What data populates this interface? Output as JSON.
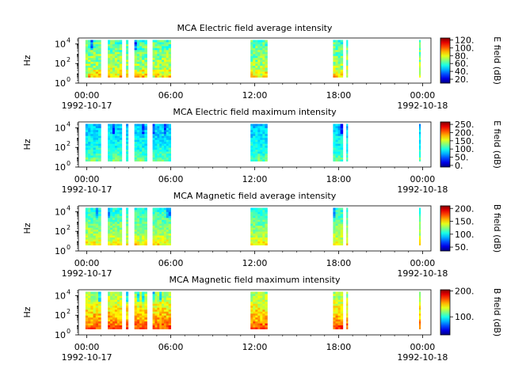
{
  "figure": {
    "background": "#ffffff"
  },
  "chart_data": [
    {
      "type": "heatmap",
      "title": "MCA  Electric field average intensity",
      "ylabel": "Hz",
      "colorbar_label": "E field (dB)",
      "colorbar_ticks": [
        "20.",
        "40.",
        "60.",
        "80.",
        "100.",
        "120."
      ],
      "colorbar_range": [
        10,
        125
      ],
      "y_ticks": [
        {
          "base": "10",
          "exp": "0"
        },
        {
          "base": "10",
          "exp": "2"
        },
        {
          "base": "10",
          "exp": "4"
        }
      ],
      "x_ticks": [
        "00:00",
        "06:00",
        "12:00",
        "18:00",
        "00:00"
      ],
      "x_dates": [
        "1992-10-17",
        "1992-10-18"
      ],
      "xlim_hours": [
        -0.6,
        24.6
      ],
      "ylim_log10": [
        0,
        4.6
      ],
      "data_coverage_hours": [
        [
          -0.1,
          1.0
        ],
        [
          1.5,
          2.5
        ],
        [
          2.8,
          2.95
        ],
        [
          3.4,
          4.3
        ],
        [
          4.7,
          6.0
        ],
        [
          11.7,
          12.9
        ],
        [
          17.6,
          18.3
        ],
        [
          18.55,
          18.65
        ],
        [
          23.75,
          23.85
        ]
      ],
      "data_ylim_log10": [
        0.6,
        4.4
      ],
      "intensity_profile": {
        "low_freq_db": 78,
        "high_freq_db": 60,
        "variation_db": 12
      }
    },
    {
      "type": "heatmap",
      "title": "MCA  Electric field maximum intensity",
      "ylabel": "Hz",
      "colorbar_label": "E field (dB)",
      "colorbar_ticks": [
        "0.",
        "50.",
        "100.",
        "150.",
        "200.",
        "250."
      ],
      "colorbar_range": [
        -10,
        265
      ],
      "y_ticks": [
        {
          "base": "10",
          "exp": "0"
        },
        {
          "base": "10",
          "exp": "2"
        },
        {
          "base": "10",
          "exp": "4"
        }
      ],
      "x_ticks": [
        "00:00",
        "06:00",
        "12:00",
        "18:00",
        "00:00"
      ],
      "x_dates": [
        "1992-10-17",
        "1992-10-18"
      ],
      "xlim_hours": [
        -0.6,
        24.6
      ],
      "ylim_log10": [
        0,
        4.6
      ],
      "data_coverage_hours": [
        [
          -0.1,
          1.0
        ],
        [
          1.5,
          2.5
        ],
        [
          2.8,
          2.95
        ],
        [
          3.4,
          4.3
        ],
        [
          4.7,
          6.0
        ],
        [
          11.7,
          12.9
        ],
        [
          17.6,
          18.3
        ],
        [
          18.55,
          18.65
        ],
        [
          23.75,
          23.85
        ]
      ],
      "data_ylim_log10": [
        0.6,
        4.4
      ],
      "intensity_profile": {
        "low_freq_db": 110,
        "high_freq_db": 75,
        "variation_db": 18
      }
    },
    {
      "type": "heatmap",
      "title": "MCA  Magnetic field average intensity",
      "ylabel": "Hz",
      "colorbar_label": "B field (dB)",
      "colorbar_ticks": [
        "50.",
        "100.",
        "150.",
        "200."
      ],
      "colorbar_range": [
        35,
        210
      ],
      "y_ticks": [
        {
          "base": "10",
          "exp": "0"
        },
        {
          "base": "10",
          "exp": "2"
        },
        {
          "base": "10",
          "exp": "4"
        }
      ],
      "x_ticks": [
        "00:00",
        "06:00",
        "12:00",
        "18:00",
        "00:00"
      ],
      "x_dates": [
        "1992-10-17",
        "1992-10-18"
      ],
      "xlim_hours": [
        -0.6,
        24.6
      ],
      "ylim_log10": [
        0,
        4.6
      ],
      "data_coverage_hours": [
        [
          -0.1,
          1.0
        ],
        [
          1.5,
          2.5
        ],
        [
          2.8,
          2.95
        ],
        [
          3.4,
          4.3
        ],
        [
          4.7,
          6.0
        ],
        [
          11.7,
          12.9
        ],
        [
          17.6,
          18.3
        ],
        [
          18.55,
          18.65
        ],
        [
          23.75,
          23.85
        ]
      ],
      "data_ylim_log10": [
        0.6,
        4.4
      ],
      "intensity_profile": {
        "low_freq_db": 140,
        "high_freq_db": 105,
        "variation_db": 12
      }
    },
    {
      "type": "heatmap",
      "title": "MCA  Magnetic field maximum intensity",
      "ylabel": "Hz",
      "colorbar_label": "B field (dB)",
      "colorbar_ticks": [
        "100.",
        "200."
      ],
      "colorbar_range": [
        30,
        205
      ],
      "y_ticks": [
        {
          "base": "10",
          "exp": "0"
        },
        {
          "base": "10",
          "exp": "2"
        },
        {
          "base": "10",
          "exp": "4"
        }
      ],
      "x_ticks": [
        "00:00",
        "06:00",
        "12:00",
        "18:00",
        "00:00"
      ],
      "x_dates": [
        "1992-10-17",
        "1992-10-18"
      ],
      "xlim_hours": [
        -0.6,
        24.6
      ],
      "ylim_log10": [
        0,
        4.6
      ],
      "data_coverage_hours": [
        [
          -0.1,
          1.0
        ],
        [
          1.5,
          2.5
        ],
        [
          2.8,
          2.95
        ],
        [
          3.4,
          4.3
        ],
        [
          4.7,
          6.0
        ],
        [
          11.7,
          12.9
        ],
        [
          17.6,
          18.3
        ],
        [
          18.55,
          18.65
        ],
        [
          23.75,
          23.85
        ]
      ],
      "data_ylim_log10": [
        0.6,
        4.4
      ],
      "intensity_profile": {
        "low_freq_db": 165,
        "high_freq_db": 120,
        "variation_db": 14
      }
    }
  ]
}
